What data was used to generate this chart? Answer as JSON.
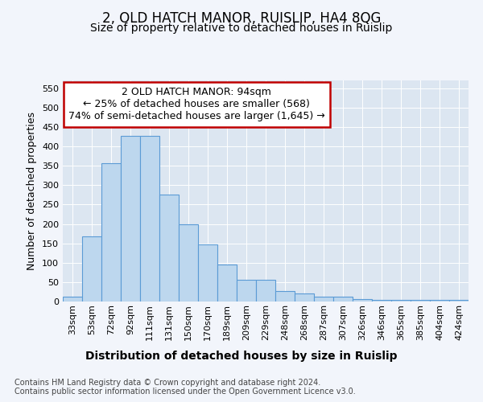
{
  "title": "2, OLD HATCH MANOR, RUISLIP, HA4 8QG",
  "subtitle": "Size of property relative to detached houses in Ruislip",
  "xlabel": "Distribution of detached houses by size in Ruislip",
  "ylabel": "Number of detached properties",
  "categories": [
    "33sqm",
    "53sqm",
    "72sqm",
    "92sqm",
    "111sqm",
    "131sqm",
    "150sqm",
    "170sqm",
    "189sqm",
    "209sqm",
    "229sqm",
    "248sqm",
    "268sqm",
    "287sqm",
    "307sqm",
    "326sqm",
    "346sqm",
    "365sqm",
    "385sqm",
    "404sqm",
    "424sqm"
  ],
  "values": [
    13,
    168,
    357,
    428,
    428,
    275,
    200,
    148,
    96,
    55,
    55,
    27,
    20,
    12,
    12,
    7,
    5,
    5,
    4,
    5,
    5
  ],
  "bar_color": "#bdd7ee",
  "bar_edge_color": "#5b9bd5",
  "annotation_text": "2 OLD HATCH MANOR: 94sqm\n← 25% of detached houses are smaller (568)\n74% of semi-detached houses are larger (1,645) →",
  "annotation_box_color": "#ffffff",
  "annotation_box_edge": "#c00000",
  "ylim": [
    0,
    570
  ],
  "yticks": [
    0,
    50,
    100,
    150,
    200,
    250,
    300,
    350,
    400,
    450,
    500,
    550
  ],
  "background_color": "#f2f5fb",
  "plot_bg_color": "#dce6f1",
  "footer_line1": "Contains HM Land Registry data © Crown copyright and database right 2024.",
  "footer_line2": "Contains public sector information licensed under the Open Government Licence v3.0.",
  "title_fontsize": 12,
  "subtitle_fontsize": 10,
  "xlabel_fontsize": 10,
  "ylabel_fontsize": 9,
  "tick_fontsize": 8,
  "annotation_fontsize": 9,
  "footer_fontsize": 7
}
